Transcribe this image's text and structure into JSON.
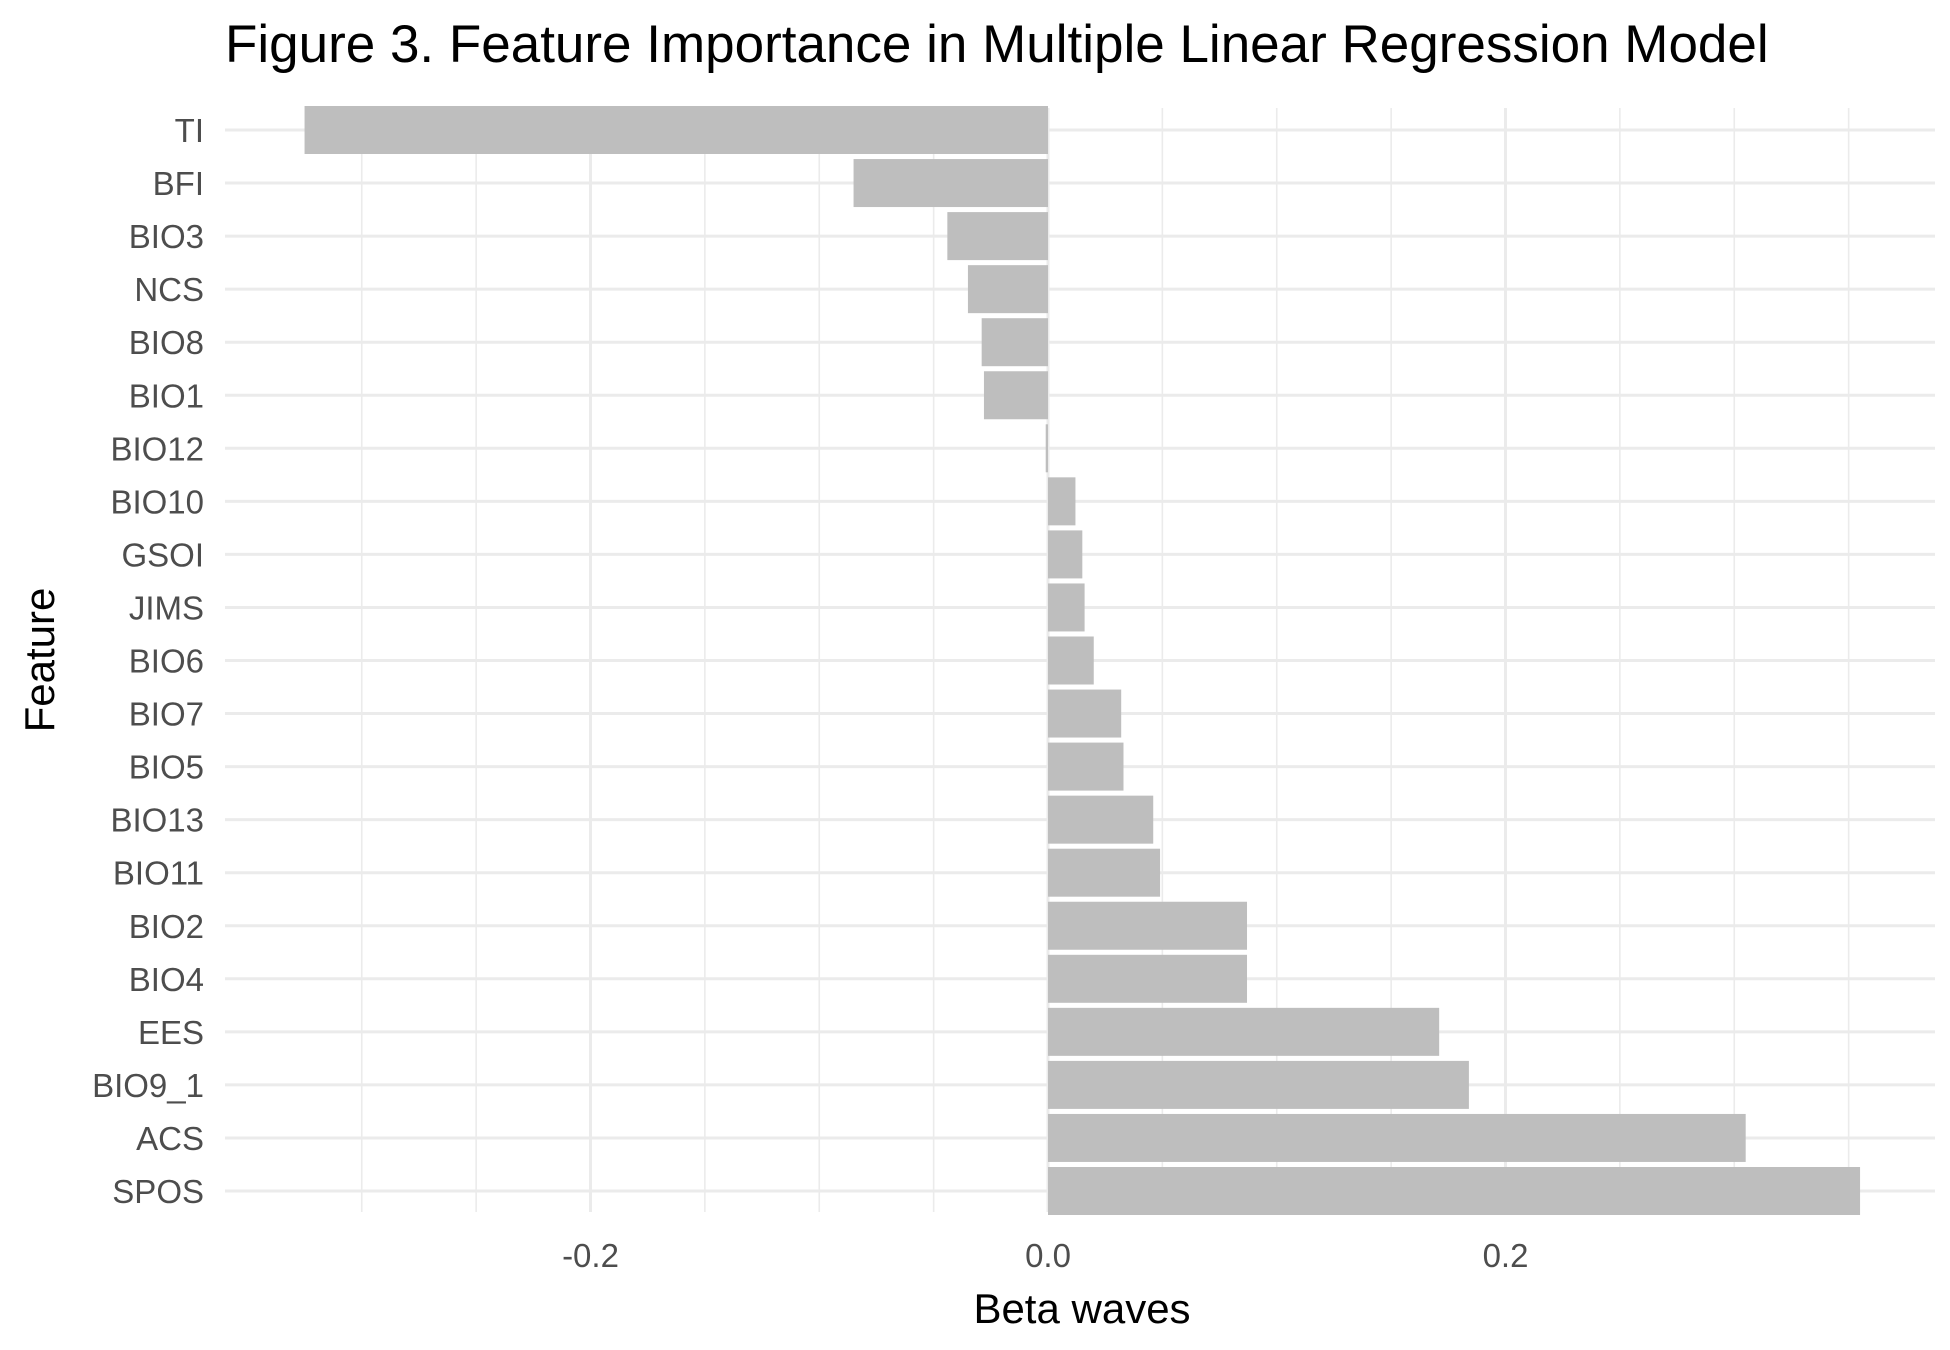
{
  "chart_data": {
    "type": "bar",
    "orientation": "horizontal",
    "title": "Figure 3. Feature Importance in Multiple Linear Regression Model",
    "xlabel": "Beta waves",
    "ylabel": "Feature",
    "xlim": [
      -0.36,
      0.38
    ],
    "x_ticks": [
      -0.2,
      0.0,
      0.2
    ],
    "x_tick_labels": [
      "-0.2",
      "0.0",
      "0.2"
    ],
    "grid": true,
    "bar_color": "#bebebe",
    "categories": [
      "TI",
      "BFI",
      "BIO3",
      "NCS",
      "BIO8",
      "BIO1",
      "BIO12",
      "BIO10",
      "GSOI",
      "JIMS",
      "BIO6",
      "BIO7",
      "BIO5",
      "BIO13",
      "BIO11",
      "BIO2",
      "BIO4",
      "EES",
      "BIO9_1",
      "ACS",
      "SPOS"
    ],
    "values": [
      -0.325,
      -0.085,
      -0.044,
      -0.035,
      -0.029,
      -0.028,
      -0.001,
      0.012,
      0.015,
      0.016,
      0.02,
      0.032,
      0.033,
      0.046,
      0.049,
      0.087,
      0.087,
      0.171,
      0.184,
      0.305,
      0.355
    ]
  },
  "colors": {
    "background": "#ffffff",
    "grid": "#ebebeb",
    "bar": "#bebebe"
  }
}
